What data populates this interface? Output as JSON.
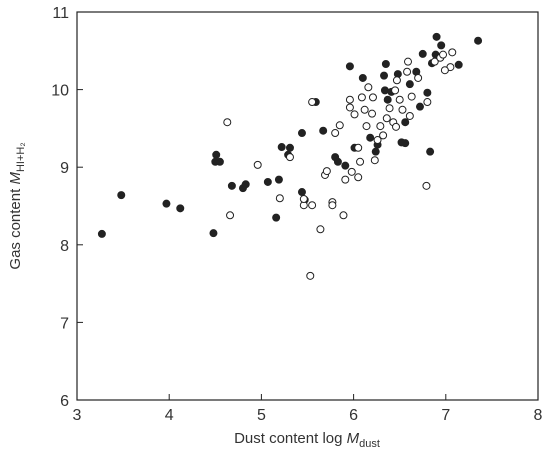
{
  "chart_data": {
    "type": "scatter",
    "xlabel": {
      "text": "Dust content  log ",
      "symbol": "M",
      "subscript": "dust"
    },
    "ylabel": {
      "text": "Gas content ",
      "symbol": "M",
      "subscript": "HI+H₂"
    },
    "xlim": [
      3,
      8
    ],
    "xticks": [
      3,
      4,
      5,
      6,
      7,
      8
    ],
    "ylim": [
      6,
      11
    ],
    "yticks": [
      6,
      7,
      8,
      9,
      10,
      11
    ],
    "series": [
      {
        "color": "#222222",
        "marker": "filled",
        "x": [
          3.27,
          3.48,
          3.97,
          4.12,
          4.48,
          4.51,
          4.5,
          4.55,
          4.68,
          4.8,
          4.83,
          5.07,
          5.16,
          5.19,
          5.22,
          5.29,
          5.31,
          5.44,
          5.44,
          5.47,
          5.67,
          5.59,
          5.8,
          5.83,
          5.91,
          5.96,
          6.01,
          6.1,
          6.18,
          6.24,
          6.26,
          6.34,
          6.33,
          6.35,
          6.37,
          6.41,
          6.48,
          6.56,
          6.56,
          6.52,
          6.61,
          6.68,
          6.72,
          6.75,
          6.8,
          6.83,
          6.85,
          6.9,
          6.95,
          6.89,
          7.14,
          7.35
        ],
        "values": [
          8.14,
          8.64,
          8.53,
          8.47,
          8.15,
          9.16,
          9.07,
          9.07,
          8.76,
          8.73,
          8.78,
          8.81,
          8.35,
          8.84,
          9.26,
          9.16,
          9.25,
          9.44,
          8.68,
          8.58,
          9.47,
          9.84,
          9.13,
          9.07,
          9.02,
          10.3,
          9.25,
          10.15,
          9.38,
          9.2,
          9.29,
          9.99,
          10.18,
          10.33,
          9.87,
          9.97,
          10.2,
          9.58,
          9.31,
          9.32,
          10.07,
          10.23,
          9.78,
          10.46,
          9.96,
          9.2,
          10.34,
          10.68,
          10.57,
          10.45,
          10.32,
          10.63
        ]
      },
      {
        "color": "#222222",
        "marker": "open",
        "x": [
          4.63,
          4.96,
          4.66,
          5.2,
          5.31,
          5.46,
          5.46,
          5.55,
          5.53,
          5.55,
          5.64,
          5.69,
          5.71,
          5.77,
          5.77,
          5.8,
          5.85,
          5.89,
          5.91,
          5.96,
          5.96,
          5.98,
          6.01,
          6.05,
          6.07,
          6.05,
          6.09,
          6.12,
          6.14,
          6.16,
          6.21,
          6.2,
          6.23,
          6.26,
          6.29,
          6.32,
          6.36,
          6.39,
          6.43,
          6.45,
          6.47,
          6.5,
          6.53,
          6.58,
          6.59,
          6.63,
          6.61,
          6.46,
          6.7,
          6.79,
          6.8,
          6.88,
          6.94,
          6.97,
          7.05,
          7.07,
          6.99
        ],
        "values": [
          9.58,
          9.03,
          8.38,
          8.6,
          9.13,
          8.51,
          8.59,
          8.51,
          7.6,
          9.84,
          8.2,
          8.9,
          8.95,
          8.55,
          8.51,
          9.44,
          9.54,
          8.38,
          8.84,
          9.77,
          9.87,
          8.94,
          9.68,
          9.25,
          9.07,
          8.87,
          9.9,
          9.74,
          9.53,
          10.03,
          9.9,
          9.69,
          9.09,
          9.35,
          9.53,
          9.41,
          9.63,
          9.76,
          9.58,
          9.99,
          10.12,
          9.87,
          9.74,
          10.23,
          10.36,
          9.91,
          9.66,
          9.52,
          10.15,
          8.76,
          9.84,
          10.36,
          10.41,
          10.45,
          10.29,
          10.48,
          10.25
        ]
      }
    ]
  }
}
